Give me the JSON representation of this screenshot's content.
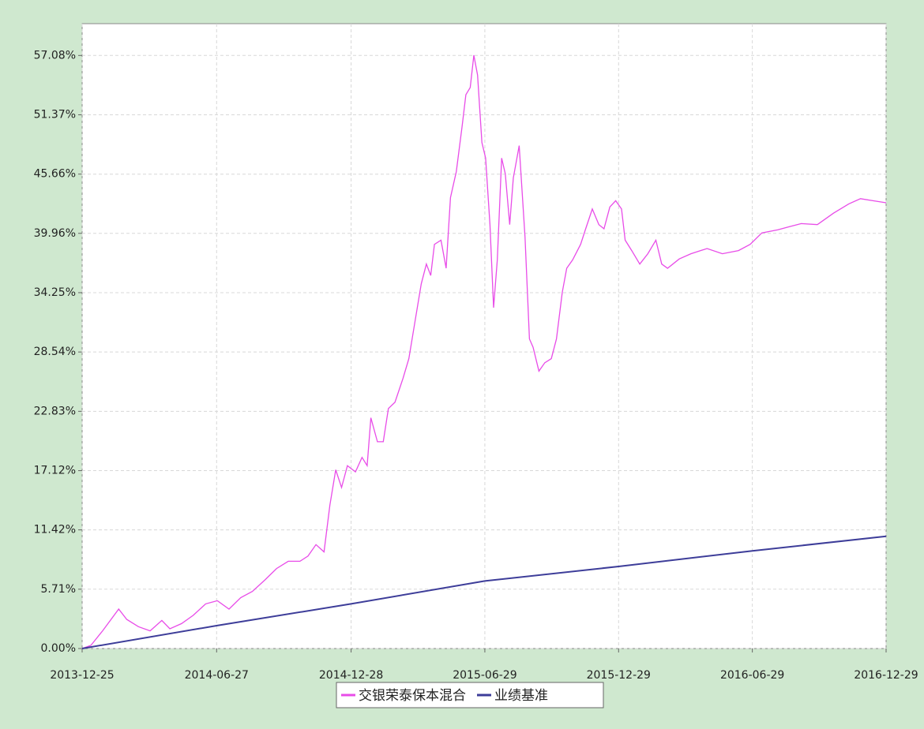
{
  "chart_data": {
    "type": "line",
    "x": [
      "2013-12-25",
      "2014-01-06",
      "2014-01-22",
      "2014-02-13",
      "2014-02-24",
      "2014-03-12",
      "2014-03-28",
      "2014-04-13",
      "2014-04-24",
      "2014-05-10",
      "2014-05-26",
      "2014-06-12",
      "2014-06-28",
      "2014-07-14",
      "2014-07-30",
      "2014-08-15",
      "2014-09-01",
      "2014-09-17",
      "2014-10-03",
      "2014-10-19",
      "2014-10-30",
      "2014-11-10",
      "2014-11-21",
      "2014-11-29",
      "2014-12-07",
      "2014-12-15",
      "2014-12-23",
      "2015-01-03",
      "2015-01-12",
      "2015-01-19",
      "2015-01-24",
      "2015-02-02",
      "2015-02-10",
      "2015-02-17",
      "2015-02-26",
      "2015-03-09",
      "2015-03-17",
      "2015-03-25",
      "2015-04-03",
      "2015-04-10",
      "2015-04-16",
      "2015-04-21",
      "2015-04-30",
      "2015-05-07",
      "2015-05-13",
      "2015-05-21",
      "2015-05-29",
      "2015-06-03",
      "2015-06-09",
      "2015-06-14",
      "2015-06-19",
      "2015-06-25",
      "2015-06-30",
      "2015-07-06",
      "2015-07-11",
      "2015-07-16",
      "2015-07-22",
      "2015-07-27",
      "2015-08-02",
      "2015-08-07",
      "2015-08-15",
      "2015-08-23",
      "2015-08-29",
      "2015-09-03",
      "2015-09-11",
      "2015-09-19",
      "2015-09-28",
      "2015-10-05",
      "2015-10-13",
      "2015-10-19",
      "2015-10-27",
      "2015-11-07",
      "2015-11-14",
      "2015-11-23",
      "2015-12-02",
      "2015-12-09",
      "2015-12-17",
      "2015-12-25",
      "2016-01-02",
      "2016-01-07",
      "2016-01-16",
      "2016-01-27",
      "2016-02-07",
      "2016-02-18",
      "2016-02-26",
      "2016-03-05",
      "2016-03-21",
      "2016-04-06",
      "2016-04-28",
      "2016-05-19",
      "2016-06-10",
      "2016-06-26",
      "2016-07-12",
      "2016-08-03",
      "2016-08-19",
      "2016-09-04",
      "2016-09-26",
      "2016-10-18",
      "2016-11-08",
      "2016-11-24",
      "2016-12-11",
      "2016-12-29"
    ],
    "series": [
      {
        "name": "交银荣泰保本混合",
        "color": "#e84ce8",
        "values": [
          0,
          0.3,
          1.7,
          3.8,
          2.8,
          2.1,
          1.7,
          2.7,
          1.9,
          2.4,
          3.2,
          4.3,
          4.6,
          3.8,
          4.9,
          5.5,
          6.6,
          7.7,
          8.4,
          8.4,
          8.9,
          10.0,
          9.3,
          13.8,
          17.2,
          15.5,
          17.6,
          17.0,
          18.4,
          17.6,
          22.2,
          19.9,
          19.9,
          23.1,
          23.7,
          26.0,
          27.9,
          31.3,
          35.1,
          37.0,
          35.9,
          38.9,
          39.3,
          36.6,
          43.4,
          45.9,
          50.3,
          53.3,
          54.0,
          57.1,
          55.2,
          48.7,
          47.2,
          40.8,
          32.8,
          37.4,
          47.2,
          45.7,
          40.8,
          45.3,
          48.4,
          39.6,
          29.8,
          29.0,
          26.7,
          27.5,
          27.9,
          29.8,
          34.3,
          36.6,
          37.4,
          38.9,
          40.4,
          42.3,
          40.8,
          40.4,
          42.5,
          43.1,
          42.3,
          39.3,
          38.3,
          37.0,
          38.0,
          39.3,
          37.0,
          36.6,
          37.5,
          38.0,
          38.5,
          38.0,
          38.3,
          38.9,
          40.0,
          40.3,
          40.6,
          40.9,
          40.8,
          41.9,
          42.8,
          43.3,
          43.1,
          42.9
        ]
      },
      {
        "name": "业绩基准",
        "color": "#3d3d99",
        "x": [
          "2013-12-25",
          "2014-06-27",
          "2014-12-28",
          "2015-06-29",
          "2015-12-29",
          "2016-06-29",
          "2016-12-29"
        ],
        "values": [
          0,
          2.2,
          4.3,
          6.5,
          7.9,
          9.4,
          10.8
        ]
      }
    ],
    "xlim": [
      "2013-12-25",
      "2016-12-29"
    ],
    "xticks": [
      "2013-12-25",
      "2014-06-27",
      "2014-12-28",
      "2015-06-29",
      "2015-12-29",
      "2016-06-29",
      "2016-12-29"
    ],
    "ylim": [
      0,
      60.14
    ],
    "yticks": [
      {
        "value": 0,
        "label": "0.00%"
      },
      {
        "value": 5.71,
        "label": "5.71%"
      },
      {
        "value": 11.42,
        "label": "11.42%"
      },
      {
        "value": 17.12,
        "label": "17.12%"
      },
      {
        "value": 22.83,
        "label": "22.83%"
      },
      {
        "value": 28.54,
        "label": "28.54%"
      },
      {
        "value": 34.25,
        "label": "34.25%"
      },
      {
        "value": 39.96,
        "label": "39.96%"
      },
      {
        "value": 45.66,
        "label": "45.66%"
      },
      {
        "value": 51.37,
        "label": "51.37%"
      },
      {
        "value": 57.08,
        "label": "57.08%"
      }
    ],
    "grid": true
  }
}
